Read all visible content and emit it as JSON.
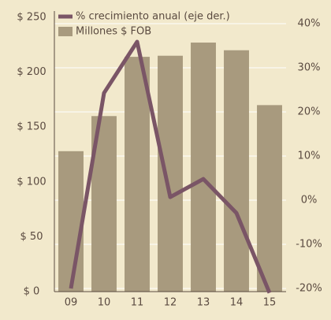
{
  "chart_data": {
    "type": "bar-line",
    "categories": [
      "09",
      "10",
      "11",
      "12",
      "13",
      "14",
      "15"
    ],
    "series": [
      {
        "name": "Millones $ FOB",
        "type": "bar",
        "color": "#a89a7e",
        "values": [
          128,
          160,
          214,
          215,
          227,
          220,
          170
        ]
      },
      {
        "name": "% crecimiento anual (eje der.)",
        "type": "line",
        "axis": "y2",
        "color": "#7a5566",
        "values": [
          -20,
          24.3,
          35.9,
          0.7,
          4.8,
          -2.9,
          -21
        ]
      }
    ],
    "ylim": [
      0,
      250
    ],
    "yticks": [
      {
        "value": 0,
        "label": "$ 0"
      },
      {
        "value": 50,
        "label": "$ 50"
      },
      {
        "value": 100,
        "label": "$ 100"
      },
      {
        "value": 150,
        "label": "$ 150"
      },
      {
        "value": 200,
        "label": "$ 200"
      },
      {
        "value": 250,
        "label": "$ 250"
      }
    ],
    "y2lim": [
      -20,
      40
    ],
    "y2ticks": [
      {
        "value": -20,
        "label": "-20%"
      },
      {
        "value": -10,
        "label": "-10%"
      },
      {
        "value": 0,
        "label": "0%"
      },
      {
        "value": 10,
        "label": "10%"
      },
      {
        "value": 20,
        "label": "20%"
      },
      {
        "value": 30,
        "label": "30%"
      },
      {
        "value": 40,
        "label": "40%"
      }
    ],
    "grid": true
  }
}
